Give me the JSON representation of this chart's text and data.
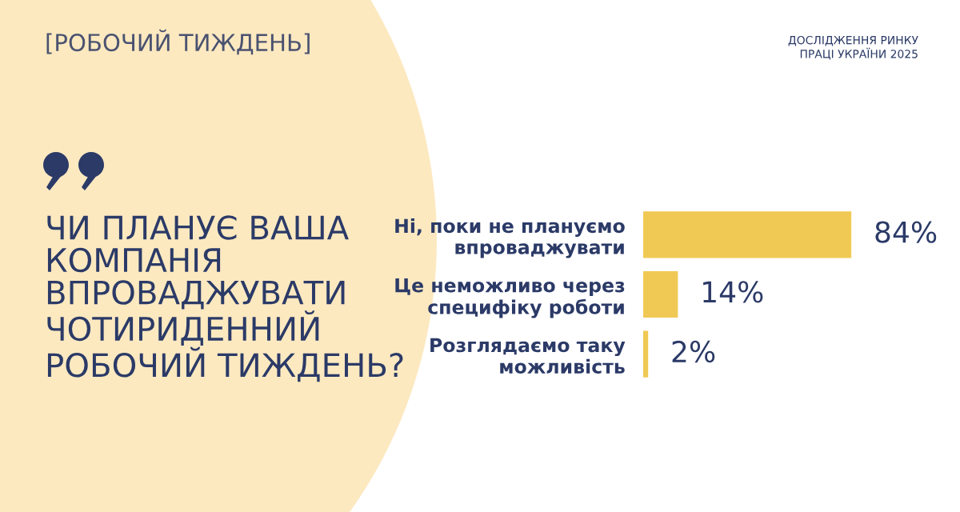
{
  "chart_data": {
    "type": "bar",
    "orientation": "horizontal",
    "subtitle": "[РОБОЧИЙ ТИЖДЕНЬ]",
    "title": "ЧИ ПЛАНУЄ ВАША\nКОМПАНІЯ\nВПРОВАДЖУВАТИ\nЧОТИРИДЕННИЙ\nРОБОЧИЙ ТИЖДЕНЬ?",
    "annotations": [
      "ДОСЛІДЖЕННЯ РИНКУ\nПРАЦІ УКРАЇНИ 2025"
    ],
    "categories": [
      "Ні, поки не плануємо\nвпроваджувати",
      "Це неможливо через\nспецифіку роботи",
      "Розглядаємо таку\nможливість"
    ],
    "values": [
      84,
      14,
      2
    ],
    "color": "#f0c954",
    "value_labels": [
      "84%",
      "14%",
      "2%"
    ],
    "legend": false,
    "grid": false
  }
}
